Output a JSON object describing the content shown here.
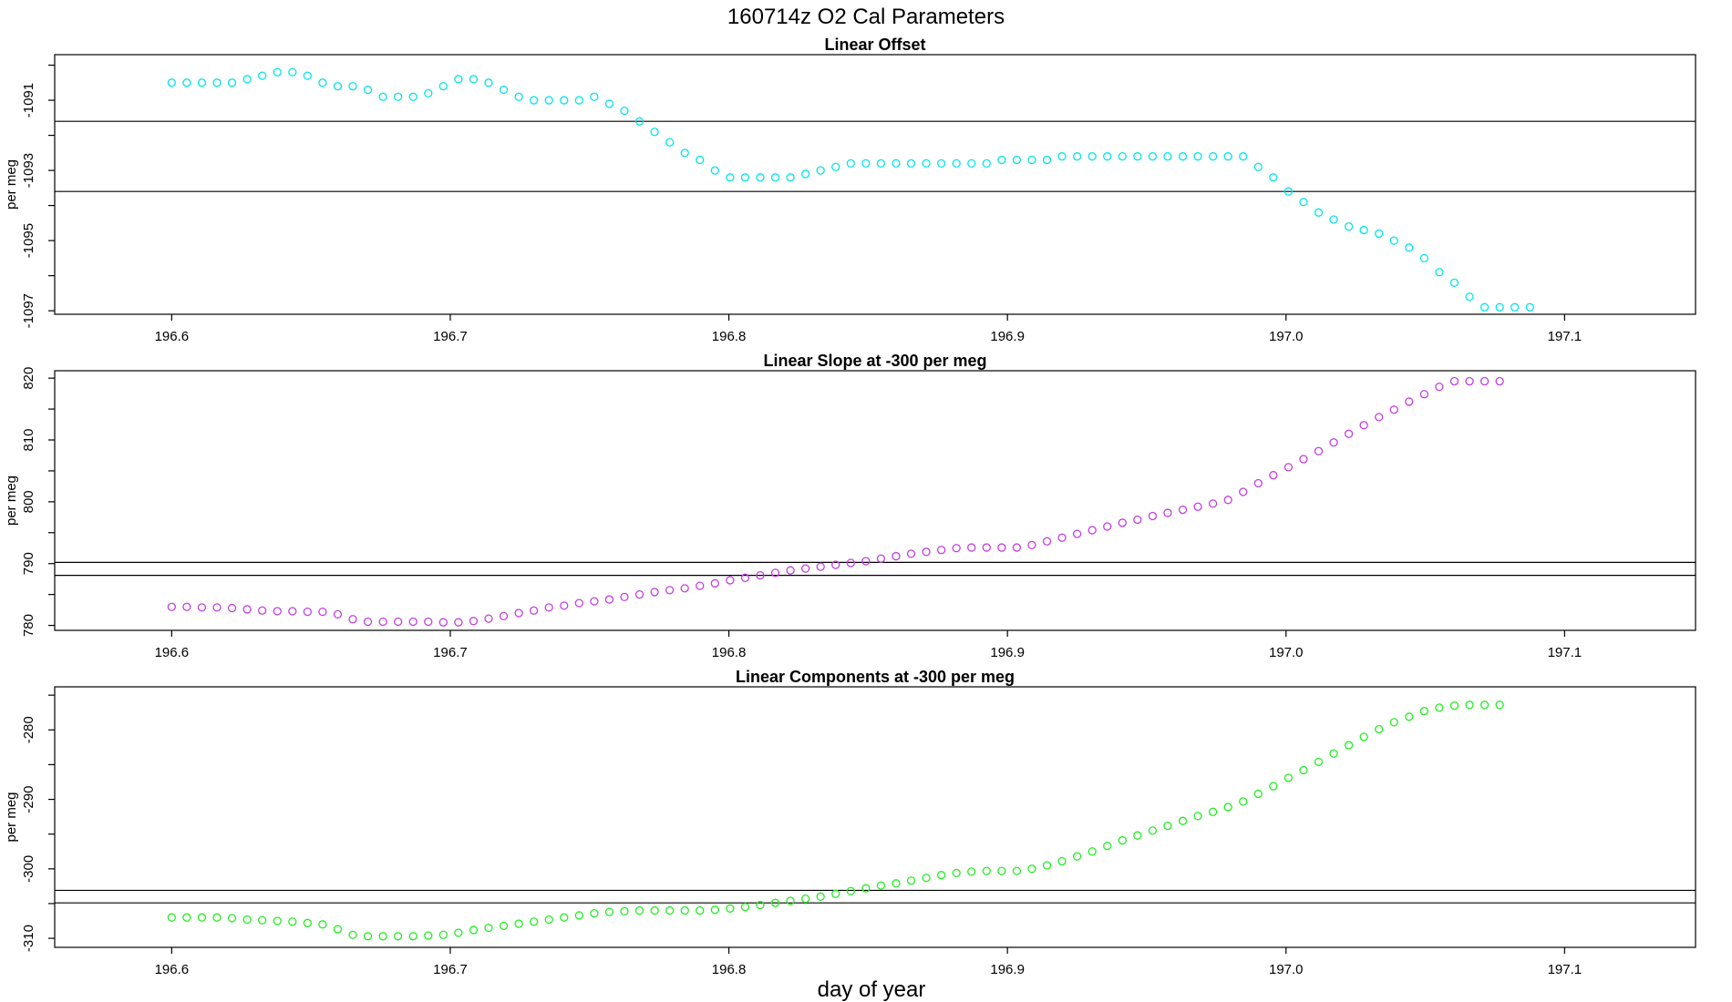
{
  "figure": {
    "title": "160714z   O2 Cal Parameters",
    "xlabel": "day of year"
  },
  "chart_data": [
    {
      "type": "scatter",
      "title": "Linear Offset",
      "ylabel": "per meg",
      "color": "#00e5ee",
      "xlim": [
        196.558,
        197.147
      ],
      "ylim": [
        -1097.1,
        -1089.7
      ],
      "xticks": [
        "196.6",
        "196.7",
        "196.8",
        "196.9",
        "197.0",
        "197.1"
      ],
      "yticks": [
        "-1091",
        "-1093",
        "-1095",
        "-1097"
      ],
      "hlines": [
        -1091.6,
        -1093.6
      ],
      "x_start": 196.6,
      "x_step": 0.005417,
      "values": [
        -1090.5,
        -1090.5,
        -1090.5,
        -1090.5,
        -1090.5,
        -1090.4,
        -1090.3,
        -1090.2,
        -1090.2,
        -1090.3,
        -1090.5,
        -1090.6,
        -1090.6,
        -1090.7,
        -1090.9,
        -1090.9,
        -1090.9,
        -1090.8,
        -1090.6,
        -1090.4,
        -1090.4,
        -1090.5,
        -1090.7,
        -1090.9,
        -1091.0,
        -1091.0,
        -1091.0,
        -1091.0,
        -1090.9,
        -1091.1,
        -1091.3,
        -1091.6,
        -1091.9,
        -1092.2,
        -1092.5,
        -1092.7,
        -1093.0,
        -1093.2,
        -1093.2,
        -1093.2,
        -1093.2,
        -1093.2,
        -1093.1,
        -1093.0,
        -1092.9,
        -1092.8,
        -1092.8,
        -1092.8,
        -1092.8,
        -1092.8,
        -1092.8,
        -1092.8,
        -1092.8,
        -1092.8,
        -1092.8,
        -1092.7,
        -1092.7,
        -1092.7,
        -1092.7,
        -1092.6,
        -1092.6,
        -1092.6,
        -1092.6,
        -1092.6,
        -1092.6,
        -1092.6,
        -1092.6,
        -1092.6,
        -1092.6,
        -1092.6,
        -1092.6,
        -1092.6,
        -1092.9,
        -1093.2,
        -1093.6,
        -1093.9,
        -1094.2,
        -1094.4,
        -1094.6,
        -1094.7,
        -1094.8,
        -1095.0,
        -1095.2,
        -1095.5,
        -1095.9,
        -1096.2,
        -1096.6,
        -1096.9,
        -1096.9,
        -1096.9,
        -1096.9
      ]
    },
    {
      "type": "scatter",
      "title": "Linear Slope at -300 per meg",
      "ylabel": "per meg",
      "color": "#c23ee0",
      "xlim": [
        196.558,
        197.147
      ],
      "ylim": [
        779.2,
        821.2
      ],
      "xticks": [
        "196.6",
        "196.7",
        "196.8",
        "196.9",
        "197.0",
        "197.1"
      ],
      "yticks": [
        "780",
        "790",
        "800",
        "810",
        "820"
      ],
      "hlines": [
        790.2,
        788.1
      ],
      "x_start": 196.6,
      "x_step": 0.005417,
      "values": [
        783.0,
        783.0,
        782.9,
        782.9,
        782.8,
        782.6,
        782.4,
        782.3,
        782.3,
        782.2,
        782.2,
        781.8,
        781.0,
        780.6,
        780.6,
        780.6,
        780.6,
        780.6,
        780.5,
        780.5,
        780.7,
        781.1,
        781.5,
        782.0,
        782.4,
        782.9,
        783.2,
        783.6,
        783.9,
        784.2,
        784.6,
        785.0,
        785.4,
        785.7,
        786.0,
        786.4,
        786.8,
        787.3,
        787.7,
        788.1,
        788.5,
        788.9,
        789.2,
        789.5,
        789.8,
        790.1,
        790.4,
        790.8,
        791.2,
        791.6,
        791.9,
        792.2,
        792.5,
        792.6,
        792.6,
        792.6,
        792.6,
        793.0,
        793.6,
        794.2,
        794.8,
        795.4,
        796.0,
        796.6,
        797.1,
        797.7,
        798.2,
        798.7,
        799.2,
        799.7,
        800.3,
        801.6,
        803.0,
        804.3,
        805.6,
        806.9,
        808.2,
        809.6,
        811.0,
        812.4,
        813.7,
        814.9,
        816.2,
        817.4,
        818.6,
        819.5,
        819.5,
        819.5,
        819.5
      ]
    },
    {
      "type": "scatter",
      "title": "Linear Components at -300 per meg",
      "ylabel": "per meg",
      "color": "#22ee22",
      "xlim": [
        196.558,
        197.147
      ],
      "ylim": [
        -311.3,
        -273.8
      ],
      "xticks": [
        "196.6",
        "196.7",
        "196.8",
        "196.9",
        "197.0",
        "197.1"
      ],
      "yticks": [
        "-280",
        "-290",
        "-300",
        "-310"
      ],
      "hlines": [
        -303.1,
        -304.9
      ],
      "x_start": 196.6,
      "x_step": 0.005417,
      "values": [
        -307.0,
        -307.0,
        -307.0,
        -307.0,
        -307.1,
        -307.3,
        -307.4,
        -307.5,
        -307.6,
        -307.8,
        -308.0,
        -308.7,
        -309.5,
        -309.7,
        -309.7,
        -309.7,
        -309.7,
        -309.6,
        -309.5,
        -309.2,
        -308.8,
        -308.5,
        -308.2,
        -307.9,
        -307.6,
        -307.3,
        -307.0,
        -306.7,
        -306.4,
        -306.2,
        -306.1,
        -306.0,
        -306.0,
        -306.0,
        -306.0,
        -306.0,
        -305.9,
        -305.7,
        -305.5,
        -305.2,
        -304.9,
        -304.6,
        -304.3,
        -304.0,
        -303.6,
        -303.2,
        -302.8,
        -302.4,
        -302.1,
        -301.7,
        -301.3,
        -300.9,
        -300.6,
        -300.4,
        -300.3,
        -300.3,
        -300.3,
        -300.0,
        -299.5,
        -298.9,
        -298.2,
        -297.5,
        -296.7,
        -295.9,
        -295.2,
        -294.5,
        -293.8,
        -293.1,
        -292.4,
        -291.8,
        -291.1,
        -290.3,
        -289.2,
        -288.1,
        -286.9,
        -285.8,
        -284.6,
        -283.4,
        -282.2,
        -281.0,
        -279.9,
        -278.9,
        -278.1,
        -277.3,
        -276.8,
        -276.5,
        -276.4,
        -276.4,
        -276.4
      ]
    }
  ]
}
